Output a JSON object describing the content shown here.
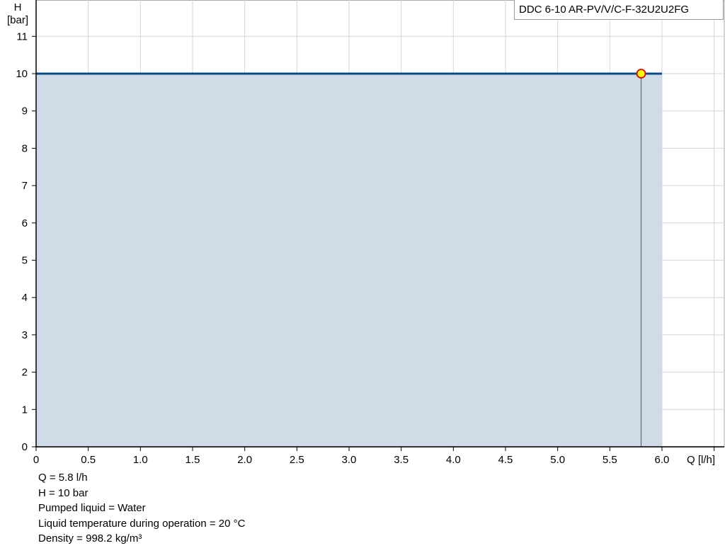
{
  "chart_data": {
    "type": "area",
    "title": "",
    "legend": {
      "label": "DDC 6-10 AR-PV/V/C-F-32U2U2FG",
      "placement": "top-right"
    },
    "xlabel": "Q [l/h]",
    "ylabel_line1": "H",
    "ylabel_line2": "[bar]",
    "xlim": [
      0,
      6.5
    ],
    "ylim": [
      0,
      12
    ],
    "x_ticks": [
      "0",
      "0.5",
      "1.0",
      "1.5",
      "2.0",
      "2.5",
      "3.0",
      "3.5",
      "4.0",
      "4.5",
      "5.0",
      "5.5",
      "6.0"
    ],
    "x_tick_values": [
      0,
      0.5,
      1.0,
      1.5,
      2.0,
      2.5,
      3.0,
      3.5,
      4.0,
      4.5,
      5.0,
      5.5,
      6.0,
      6.5
    ],
    "y_ticks": [
      "0",
      "1",
      "2",
      "3",
      "4",
      "5",
      "6",
      "7",
      "8",
      "9",
      "10",
      "11"
    ],
    "grid": true,
    "series": [
      {
        "x": [
          0,
          6.0
        ],
        "y": [
          10,
          10
        ],
        "color": "#0b4a86",
        "fill": "#cfdbe6"
      }
    ],
    "duty_point": {
      "q": 5.8,
      "h": 10,
      "color": "#ffff00",
      "border": "#e00000"
    }
  },
  "info": {
    "q": "Q = 5.8 l/h",
    "h": "H = 10 bar",
    "liquid": "Pumped liquid = Water",
    "temperature": "Liquid temperature during operation = 20 °C",
    "density": "Density = 998.2 kg/m³"
  }
}
